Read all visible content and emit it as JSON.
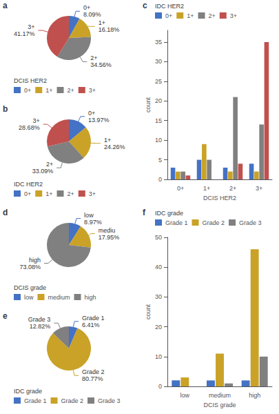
{
  "chart_data": [
    {
      "type": "pie",
      "title": "a",
      "categories": [
        "0+",
        "1+",
        "2+",
        "3+"
      ],
      "values": [
        8.09,
        16.18,
        34.56,
        41.17
      ],
      "value_labels": [
        "8.09%",
        "16.18%",
        "34.56%",
        "41.17%"
      ],
      "colors": [
        "#4472c4",
        "#c9a227",
        "#808080",
        "#c0504d"
      ],
      "annotations": [
        "0+",
        "1+",
        "2+",
        "3+"
      ],
      "data_labels": true,
      "legend_title": "DCIS HER2",
      "legend": "lower"
    },
    {
      "type": "pie",
      "title": "b",
      "categories": [
        "0+",
        "1+",
        "2+",
        "3+"
      ],
      "values": [
        13.97,
        24.26,
        33.09,
        28.68
      ],
      "value_labels": [
        "13.97%",
        "24.26%",
        "33.09%",
        "28.68%"
      ],
      "colors": [
        "#4472c4",
        "#c9a227",
        "#808080",
        "#c0504d"
      ],
      "annotations": [
        "0+",
        "1+",
        "2+",
        "3+"
      ],
      "data_labels": true,
      "legend_title": "IDC HER2",
      "legend": "lower"
    },
    {
      "type": "bar",
      "title": "c",
      "xlabel": "DCIS HER2",
      "ylabel": "count",
      "categories": [
        "0+",
        "1+",
        "2+",
        "3+"
      ],
      "series": [
        {
          "name": "0+",
          "color": "#4472c4",
          "values": [
            3,
            5,
            3,
            4
          ]
        },
        {
          "name": "1+",
          "color": "#c9a227",
          "values": [
            2,
            9,
            2,
            2
          ]
        },
        {
          "name": "2+",
          "color": "#808080",
          "values": [
            2,
            5,
            21,
            14
          ]
        },
        {
          "name": "3+",
          "color": "#c0504d",
          "values": [
            1,
            0,
            4,
            35
          ]
        }
      ],
      "ylim": [
        0,
        38
      ],
      "yticks": [
        0,
        5,
        10,
        15,
        20,
        25,
        30,
        35
      ],
      "grid": false,
      "legend_title": "IDC HER2",
      "legend": "upper"
    },
    {
      "type": "pie",
      "title": "d",
      "categories": [
        "low",
        "medium",
        "high"
      ],
      "values": [
        8.97,
        17.95,
        73.08
      ],
      "value_labels": [
        "8.97%",
        "17.95%",
        "73.08%"
      ],
      "colors": [
        "#4472c4",
        "#c9a227",
        "#808080"
      ],
      "annotations": [
        "low",
        "mediu",
        "high"
      ],
      "data_labels": true,
      "legend_title": "DCIS grade",
      "legend": "lower"
    },
    {
      "type": "pie",
      "title": "e",
      "categories": [
        "Grade 1",
        "Grade 2",
        "Grade 3"
      ],
      "values": [
        6.41,
        80.77,
        12.82
      ],
      "value_labels": [
        "6.41%",
        "80.77%",
        "12.82%"
      ],
      "colors": [
        "#4472c4",
        "#c9a227",
        "#808080"
      ],
      "annotations": [
        "Grade 1",
        "Grade 2",
        "Grade 3"
      ],
      "data_labels": true,
      "legend_title": "IDC grade",
      "legend": "lower"
    },
    {
      "type": "bar",
      "title": "f",
      "xlabel": "DCIS grade",
      "ylabel": "count",
      "categories": [
        "low",
        "medium",
        "high"
      ],
      "series": [
        {
          "name": "Grade 1",
          "color": "#4472c4",
          "values": [
            2,
            2,
            2
          ]
        },
        {
          "name": "Grade 2",
          "color": "#c9a227",
          "values": [
            3,
            11,
            46
          ]
        },
        {
          "name": "Grade 3",
          "color": "#808080",
          "values": [
            0,
            1,
            10
          ]
        }
      ],
      "ylim": [
        0,
        50
      ],
      "yticks": [
        0,
        10,
        20,
        30,
        40,
        50
      ],
      "grid": false,
      "legend_title": "IDC grade",
      "legend": "upper"
    }
  ]
}
